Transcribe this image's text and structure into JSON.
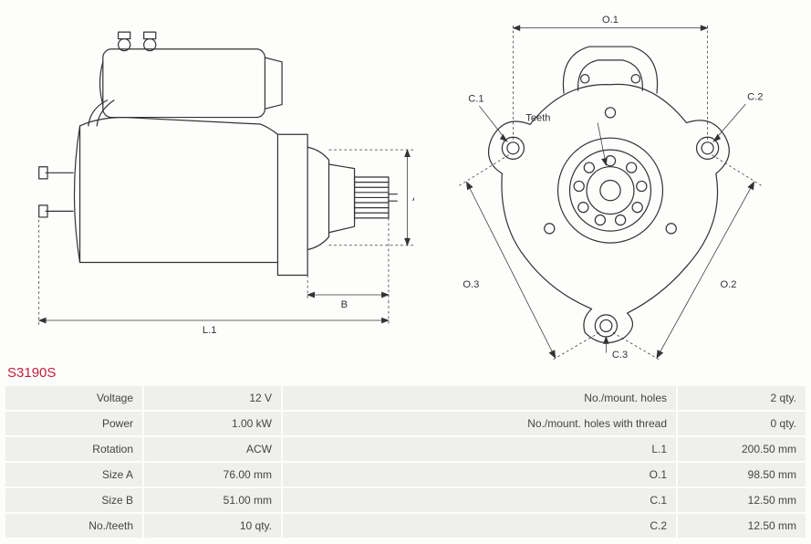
{
  "part_id": "S3190S",
  "diagram_left": {
    "dims": {
      "A": "A",
      "B": "B",
      "L1": "L.1"
    },
    "stroke": "#333333",
    "dim_stroke": "#333333"
  },
  "diagram_right": {
    "dims": {
      "O1": "O.1",
      "O2": "O.2",
      "O3": "O.3",
      "C1": "C.1",
      "C2": "C.2",
      "C3": "C.3",
      "Teeth": "Teeth"
    },
    "stroke": "#333333"
  },
  "specs": {
    "rows": [
      {
        "label_l": "Voltage",
        "val_l": "12 V",
        "label_r": "No./mount. holes",
        "val_r": "2 qty."
      },
      {
        "label_l": "Power",
        "val_l": "1.00 kW",
        "label_r": "No./mount. holes with thread",
        "val_r": "0 qty."
      },
      {
        "label_l": "Rotation",
        "val_l": "ACW",
        "label_r": "L.1",
        "val_r": "200.50 mm"
      },
      {
        "label_l": "Size A",
        "val_l": "76.00 mm",
        "label_r": "O.1",
        "val_r": "98.50 mm"
      },
      {
        "label_l": "Size B",
        "val_l": "51.00 mm",
        "label_r": "C.1",
        "val_r": "12.50 mm"
      },
      {
        "label_l": "No./teeth",
        "val_l": "10 qty.",
        "label_r": "C.2",
        "val_r": "12.50 mm"
      }
    ]
  }
}
